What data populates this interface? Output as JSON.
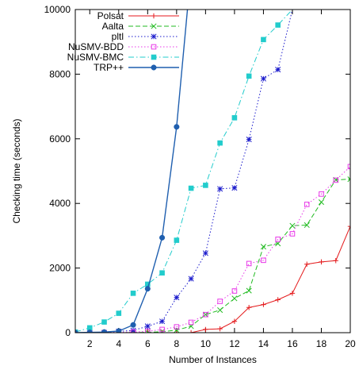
{
  "chart_data": {
    "type": "line",
    "xlabel": "Number of Instances",
    "ylabel": "Checking time (seconds)",
    "xlim": [
      1,
      20
    ],
    "ylim": [
      0,
      10000
    ],
    "xticks": [
      2,
      4,
      6,
      8,
      10,
      12,
      14,
      16,
      18,
      20
    ],
    "yticks": [
      0,
      2000,
      4000,
      6000,
      8000,
      10000
    ],
    "grid": false,
    "legend_position": "top-left",
    "series": [
      {
        "name": "Polsat",
        "color": "#e41a1c",
        "marker": "plus",
        "dash": "solid",
        "x": [
          1,
          2,
          3,
          4,
          5,
          6,
          7,
          8,
          9,
          10,
          11,
          12,
          13,
          14,
          15,
          16,
          17,
          18,
          19,
          20
        ],
        "y": [
          0,
          0,
          0,
          0,
          0,
          0,
          0,
          0,
          0,
          100,
          120,
          350,
          780,
          870,
          1020,
          1220,
          2120,
          2190,
          2230,
          3290
        ]
      },
      {
        "name": "Aalta",
        "color": "#22bb22",
        "marker": "x",
        "dash": "dashed",
        "x": [
          1,
          2,
          3,
          4,
          5,
          6,
          7,
          8,
          9,
          10,
          11,
          12,
          13,
          14,
          15,
          16,
          17,
          18,
          19,
          20
        ],
        "y": [
          0,
          0,
          0,
          0,
          5,
          10,
          30,
          80,
          200,
          560,
          700,
          1060,
          1300,
          2660,
          2760,
          3310,
          3330,
          4040,
          4730,
          4750
        ]
      },
      {
        "name": "pltl",
        "color": "#1a1acc",
        "marker": "star",
        "dash": "dotted",
        "x": [
          1,
          2,
          3,
          4,
          5,
          6,
          7,
          8,
          9,
          10,
          11,
          12,
          13,
          14,
          15,
          16
        ],
        "y": [
          0,
          0,
          0,
          40,
          70,
          200,
          350,
          1090,
          1670,
          2460,
          4450,
          4480,
          5980,
          7860,
          8140,
          10000
        ]
      },
      {
        "name": "NuSMV-BDD",
        "color": "#e838e8",
        "marker": "square",
        "dash": "dotted",
        "x": [
          1,
          2,
          3,
          4,
          5,
          6,
          7,
          8,
          9,
          10,
          11,
          12,
          13,
          14,
          15,
          16,
          17,
          18,
          19,
          20
        ],
        "y": [
          0,
          0,
          0,
          10,
          20,
          40,
          100,
          180,
          320,
          560,
          970,
          1290,
          2140,
          2240,
          2890,
          3060,
          3970,
          4290,
          4720,
          5140
        ]
      },
      {
        "name": "NuSMV-BMC",
        "color": "#22cccc",
        "marker": "filled-square",
        "dash": "dashdot",
        "x": [
          1,
          2,
          3,
          4,
          5,
          6,
          7,
          8,
          9,
          10,
          11,
          12,
          13,
          14,
          15,
          16
        ],
        "y": [
          20,
          150,
          330,
          600,
          1220,
          1500,
          1850,
          2860,
          4470,
          4560,
          5870,
          6650,
          7940,
          9070,
          9520,
          10000
        ]
      },
      {
        "name": "TRP++",
        "color": "#1f5faf",
        "marker": "circle",
        "dash": "solid",
        "x": [
          1,
          2,
          3,
          4,
          5,
          6,
          7,
          8,
          8.75
        ],
        "y": [
          0,
          10,
          20,
          50,
          240,
          1360,
          2940,
          6370,
          10000
        ]
      }
    ]
  }
}
